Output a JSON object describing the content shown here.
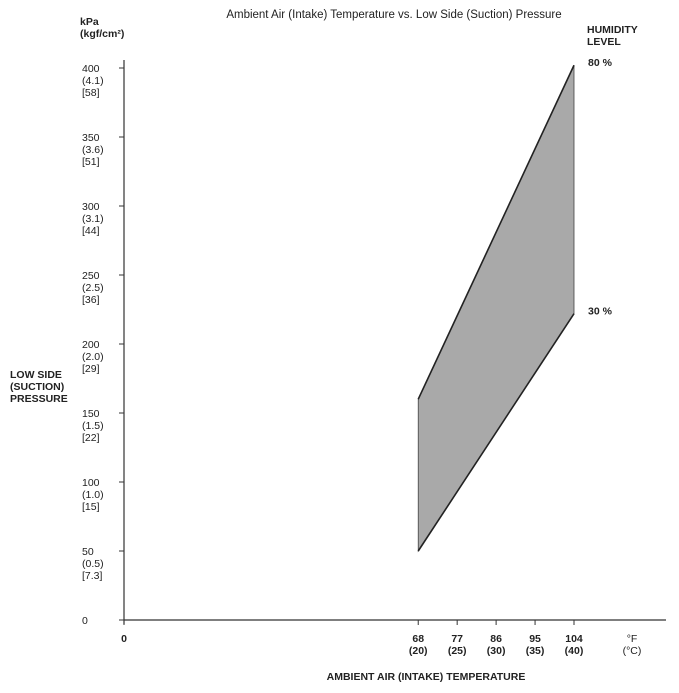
{
  "chart_data": {
    "type": "area",
    "title": "Ambient Air (Intake) Temperature vs. Low Side (Suction) Pressure",
    "xlabel": "AMBIENT AIR (INTAKE) TEMPERATURE",
    "x_unit_primary": "°F",
    "x_unit_secondary": "(°C)",
    "ylabel_lines": [
      "LOW SIDE",
      "(SUCTION)",
      "PRESSURE"
    ],
    "y_unit_lines": [
      "kPa",
      "(kgf/cm²)"
    ],
    "legend_title_lines": [
      "HUMIDITY",
      "LEVEL"
    ],
    "xlim": [
      0,
      104
    ],
    "ylim": [
      0,
      400
    ],
    "x_ticks": [
      {
        "value": 0,
        "label": "0",
        "sub": ""
      },
      {
        "value": 68,
        "label": "68",
        "sub": "(20)"
      },
      {
        "value": 77,
        "label": "77",
        "sub": "(25)"
      },
      {
        "value": 86,
        "label": "86",
        "sub": "(30)"
      },
      {
        "value": 95,
        "label": "95",
        "sub": "(35)"
      },
      {
        "value": 104,
        "label": "104",
        "sub": "(40)"
      }
    ],
    "y_ticks": [
      {
        "value": 0,
        "lines": [
          "0"
        ]
      },
      {
        "value": 50,
        "lines": [
          "50",
          "(0.5)",
          "[7.3]"
        ]
      },
      {
        "value": 100,
        "lines": [
          "100",
          "(1.0)",
          "[15]"
        ]
      },
      {
        "value": 150,
        "lines": [
          "150",
          "(1.5)",
          "[22]"
        ]
      },
      {
        "value": 200,
        "lines": [
          "200",
          "(2.0)",
          "[29]"
        ]
      },
      {
        "value": 250,
        "lines": [
          "250",
          "(2.5)",
          "[36]"
        ]
      },
      {
        "value": 300,
        "lines": [
          "300",
          "(3.1)",
          "[44]"
        ]
      },
      {
        "value": 350,
        "lines": [
          "350",
          "(3.6)",
          "[51]"
        ]
      },
      {
        "value": 400,
        "lines": [
          "400",
          "(4.1)",
          "[58]"
        ]
      }
    ],
    "series": [
      {
        "name": "80 %",
        "x": [
          68,
          104
        ],
        "y": [
          160,
          402
        ]
      },
      {
        "name": "30 %",
        "x": [
          68,
          104
        ],
        "y": [
          50,
          222
        ]
      }
    ],
    "band_color": "#a9a9a9"
  }
}
